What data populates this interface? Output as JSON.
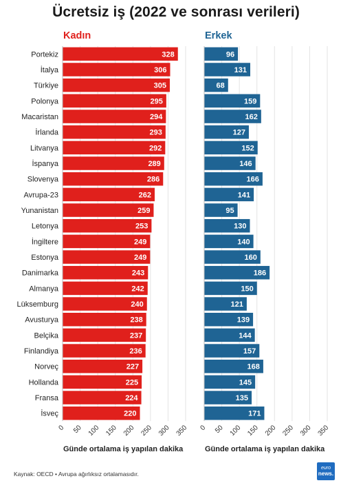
{
  "title": "Ücretsiz iş (2022 ve sonrası verileri)",
  "source_note": "Kaynak: OECD • Avrupa ağırlıksız ortalamasıdır.",
  "logo": {
    "line1": "euro",
    "line2": "news."
  },
  "colors": {
    "kadin": "#e0201c",
    "erkek": "#1f6494",
    "grid": "#e3e3e3",
    "axis": "#bdbdbd"
  },
  "chart_data": [
    {
      "type": "bar",
      "orientation": "horizontal",
      "panel_title": "Kadın",
      "xlabel": "Günde ortalama iş yapılan dakika",
      "ylabel": "",
      "xlim": [
        0,
        350
      ],
      "xticks": [
        0,
        50,
        100,
        150,
        200,
        250,
        300,
        350
      ],
      "grid": true,
      "categories": [
        "Portekiz",
        "İtalya",
        "Türkiye",
        "Polonya",
        "Macaristan",
        "İrlanda",
        "Litvanya",
        "İspanya",
        "Slovenya",
        "Avrupa-23",
        "Yunanistan",
        "Letonya",
        "İngiltere",
        "Estonya",
        "Danimarka",
        "Almanya",
        "Lüksemburg",
        "Avusturya",
        "Belçika",
        "Finlandiya",
        "Norveç",
        "Hollanda",
        "Fransa",
        "İsveç"
      ],
      "values": [
        328,
        306,
        305,
        295,
        294,
        293,
        292,
        289,
        286,
        262,
        259,
        253,
        249,
        249,
        243,
        242,
        240,
        238,
        237,
        236,
        227,
        225,
        224,
        220
      ]
    },
    {
      "type": "bar",
      "orientation": "horizontal",
      "panel_title": "Erkek",
      "xlabel": "Günde ortalama iş yapılan dakika",
      "ylabel": "",
      "xlim": [
        0,
        350
      ],
      "xticks": [
        0,
        50,
        100,
        150,
        200,
        250,
        300,
        350
      ],
      "grid": true,
      "categories": [
        "Portekiz",
        "İtalya",
        "Türkiye",
        "Polonya",
        "Macaristan",
        "İrlanda",
        "Litvanya",
        "İspanya",
        "Slovenya",
        "Avrupa-23",
        "Yunanistan",
        "Letonya",
        "İngiltere",
        "Estonya",
        "Danimarka",
        "Almanya",
        "Lüksemburg",
        "Avusturya",
        "Belçika",
        "Finlandiya",
        "Norveç",
        "Hollanda",
        "Fransa",
        "İsveç"
      ],
      "values": [
        96,
        131,
        68,
        159,
        162,
        127,
        152,
        146,
        166,
        141,
        95,
        130,
        140,
        160,
        186,
        150,
        121,
        139,
        144,
        157,
        168,
        145,
        135,
        171
      ]
    }
  ]
}
